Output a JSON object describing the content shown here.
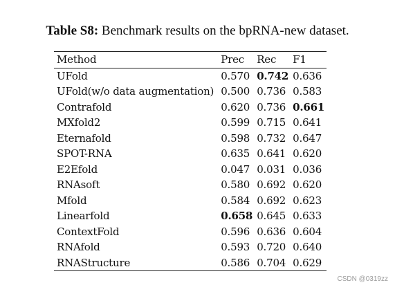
{
  "caption": {
    "label": "Table S8:",
    "text": "Benchmark results on the bpRNA-new dataset."
  },
  "table": {
    "columns": [
      "Method",
      "Prec",
      "Rec",
      "F1"
    ],
    "rows": [
      {
        "method": "UFold",
        "prec": "0.570",
        "rec": "0.742",
        "f1": "0.636",
        "best": [
          "rec"
        ]
      },
      {
        "method": "UFold(w/o data augmentation)",
        "prec": "0.500",
        "rec": "0.736",
        "f1": "0.583",
        "best": []
      },
      {
        "method": "Contrafold",
        "prec": "0.620",
        "rec": "0.736",
        "f1": "0.661",
        "best": [
          "f1"
        ]
      },
      {
        "method": "MXfold2",
        "prec": "0.599",
        "rec": "0.715",
        "f1": "0.641",
        "best": []
      },
      {
        "method": "Eternafold",
        "prec": "0.598",
        "rec": "0.732",
        "f1": "0.647",
        "best": []
      },
      {
        "method": "SPOT-RNA",
        "prec": "0.635",
        "rec": "0.641",
        "f1": "0.620",
        "best": []
      },
      {
        "method": "E2Efold",
        "prec": "0.047",
        "rec": "0.031",
        "f1": "0.036",
        "best": []
      },
      {
        "method": "RNAsoft",
        "prec": "0.580",
        "rec": "0.692",
        "f1": "0.620",
        "best": []
      },
      {
        "method": "Mfold",
        "prec": "0.584",
        "rec": "0.692",
        "f1": "0.623",
        "best": []
      },
      {
        "method": "Linearfold",
        "prec": "0.658",
        "rec": "0.645",
        "f1": "0.633",
        "best": [
          "prec"
        ]
      },
      {
        "method": "ContextFold",
        "prec": "0.596",
        "rec": "0.636",
        "f1": "0.604",
        "best": []
      },
      {
        "method": "RNAfold",
        "prec": "0.593",
        "rec": "0.720",
        "f1": "0.640",
        "best": []
      },
      {
        "method": "RNAStructure",
        "prec": "0.586",
        "rec": "0.704",
        "f1": "0.629",
        "best": []
      }
    ]
  },
  "watermark": "CSDN @0319zz"
}
